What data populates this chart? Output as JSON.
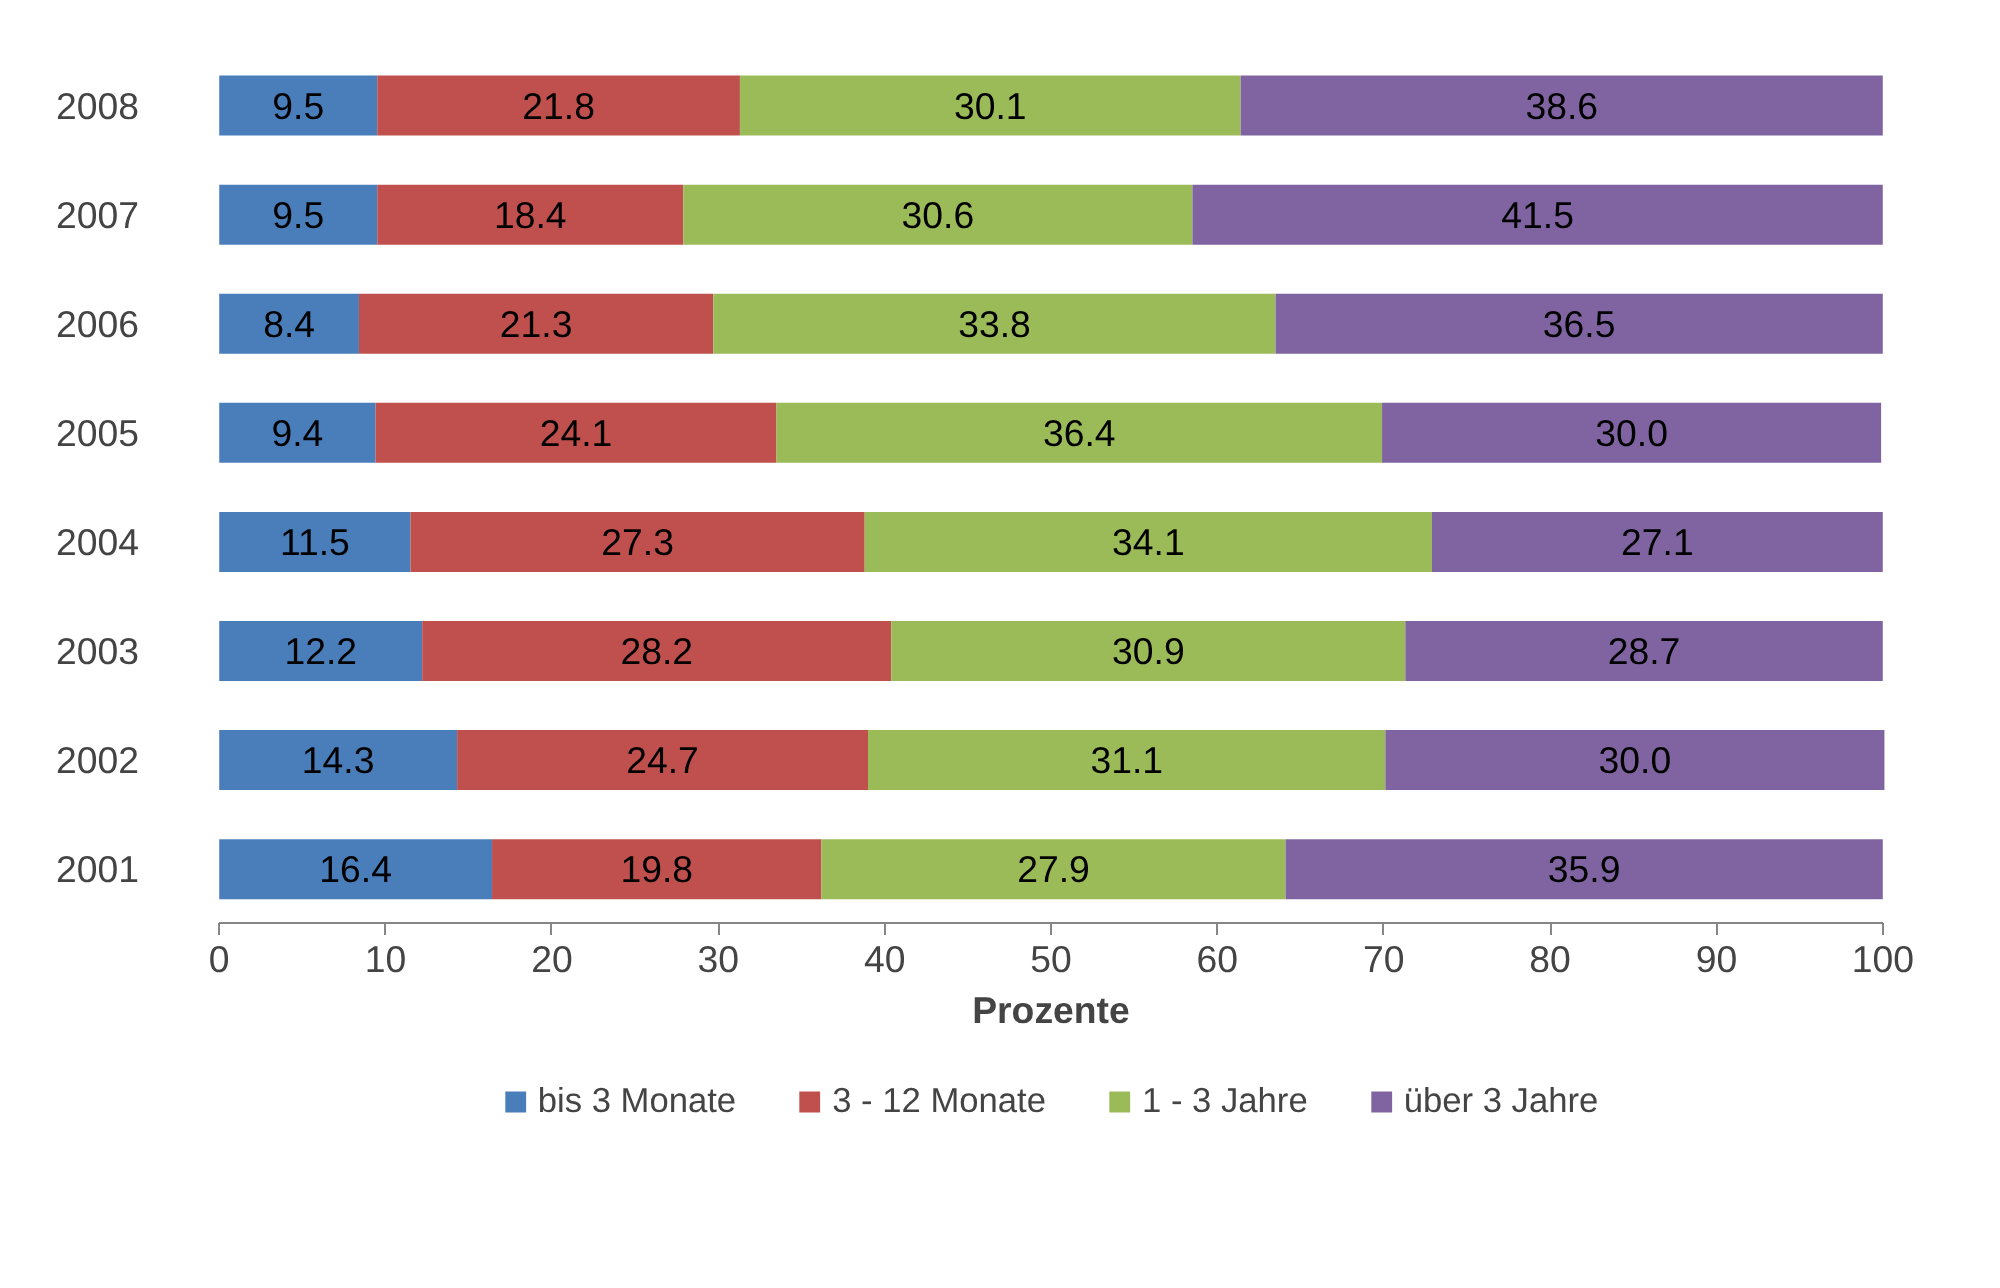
{
  "chart_data": {
    "type": "bar",
    "orientation": "horizontal",
    "stacked": true,
    "xlabel": "Prozente",
    "categories": [
      "2008",
      "2007",
      "2006",
      "2005",
      "2004",
      "2003",
      "2002",
      "2001"
    ],
    "series": [
      {
        "name": "bis 3 Monate",
        "color": "#4a7ebb",
        "values": [
          9.5,
          9.5,
          8.4,
          9.4,
          11.5,
          12.2,
          14.3,
          16.4
        ],
        "value_labels": [
          "9.5",
          "9.5",
          "8.4",
          "9.4",
          "11.5",
          "12.2",
          "14.3",
          "16.4"
        ]
      },
      {
        "name": "3 - 12 Monate",
        "color": "#c0504d",
        "values": [
          21.8,
          18.4,
          21.3,
          24.1,
          27.3,
          28.2,
          24.7,
          19.8
        ],
        "value_labels": [
          "21.8",
          "18.4",
          "21.3",
          "24.1",
          "27.3",
          "28.2",
          "24.7",
          "19.8"
        ]
      },
      {
        "name": "1 - 3 Jahre",
        "color": "#9bbb59",
        "values": [
          30.1,
          30.6,
          33.8,
          36.4,
          34.1,
          30.9,
          31.1,
          27.9
        ],
        "value_labels": [
          "30.1",
          "30.6",
          "33.8",
          "36.4",
          "34.1",
          "30.9",
          "31.1",
          "27.9"
        ]
      },
      {
        "name": "über 3 Jahre",
        "color": "#8064a2",
        "values": [
          38.6,
          41.5,
          36.5,
          30.0,
          27.1,
          28.7,
          30.0,
          35.9
        ],
        "value_labels": [
          "38.6",
          "41.5",
          "36.5",
          "30.0",
          "27.1",
          "28.7",
          "30.0",
          "35.9"
        ]
      }
    ],
    "xlim": [
      0,
      100
    ],
    "xticks": [
      0,
      10,
      20,
      30,
      40,
      50,
      60,
      70,
      80,
      90,
      100
    ],
    "data_labels": true,
    "legend": "bottom",
    "grid": false
  }
}
